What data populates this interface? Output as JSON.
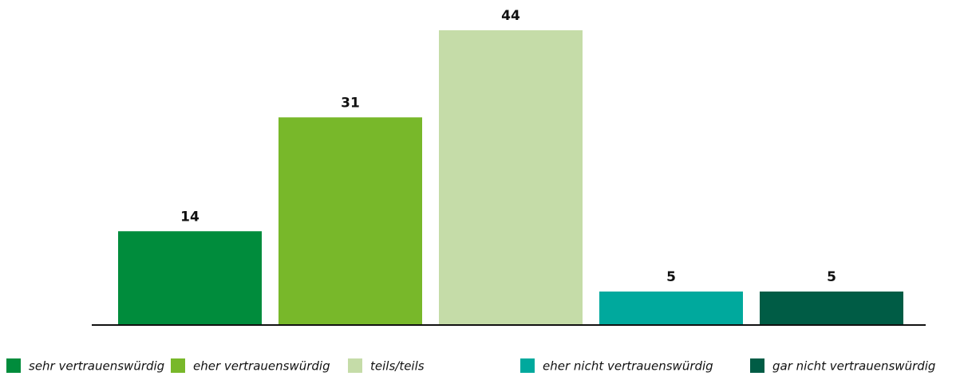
{
  "chart_data": {
    "type": "bar",
    "categories": [
      "sehr vertrauenswürdig",
      "eher vertrauenswürdig",
      "teils/teils",
      "eher nicht vertrauenswürdig",
      "gar nicht vertrauenswürdig"
    ],
    "values": [
      14,
      31,
      44,
      5,
      5
    ],
    "colors": [
      "#008c3c",
      "#78b82a",
      "#c5dca8",
      "#00a99d",
      "#005c45"
    ],
    "legend": "bottom"
  }
}
